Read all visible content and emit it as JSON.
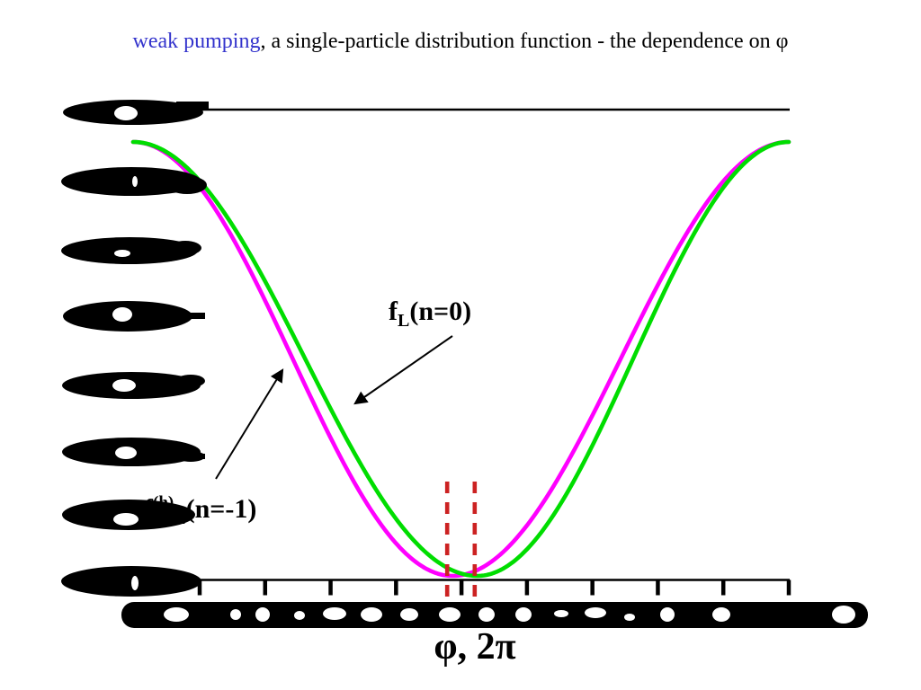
{
  "title": {
    "highlight": "weak pumping",
    "rest": ", a single-particle distribution function - the dependence on φ"
  },
  "colors": {
    "title_highlight": "#3333cc",
    "text": "#000000",
    "curve_n0": "#00dd00",
    "curve_n_minus1": "#ff00ff",
    "dashed_marker": "#cc2222",
    "axis": "#000000"
  },
  "labels": {
    "green": {
      "f": "f",
      "sub": "L",
      "rest": "(n=0)"
    },
    "magenta": {
      "f": "f",
      "sup": "(h)",
      "sub": "L",
      "rest": "(n=-1)"
    }
  },
  "xlabel": "φ, 2π",
  "axis_note": {
    "y_tick_labels": "illegible (corrupted black smudges)",
    "x_tick_labels": "illegible (corrupted black smudge band)"
  },
  "chart_data": {
    "type": "line",
    "title": "weak pumping, a single-particle distribution function - the dependence on φ",
    "xlabel": "φ, 2π",
    "ylabel": "",
    "grid": false,
    "legend": "none (labels with arrows inside plot)",
    "x_axis": {
      "tick_count": 10,
      "tick_labels_legible": false
    },
    "y_axis": {
      "tick_labels_legible": false
    },
    "series": [
      {
        "name": "fL(n=0)",
        "color": "#00dd00",
        "shape": "cosine-like well: maximum at both plot edges, single minimum touching the x-axis",
        "min_x_fraction": 0.525
      },
      {
        "name": "f(h)L(n=-1)",
        "color": "#ff00ff",
        "shape": "cosine-like well: maximum at both plot edges, single minimum touching the x-axis, shifted left of the green curve",
        "min_x_fraction": 0.487
      }
    ],
    "annotations": [
      {
        "type": "vline-dashed",
        "x_fraction": 0.479,
        "color": "#cc2222"
      },
      {
        "type": "vline-dashed",
        "x_fraction": 0.521,
        "color": "#cc2222"
      },
      {
        "type": "arrow",
        "label": "fL(n=0)",
        "points_to": "green curve"
      },
      {
        "type": "arrow",
        "label": "f(h)L(n=-1)",
        "points_to": "magenta curve"
      }
    ]
  }
}
